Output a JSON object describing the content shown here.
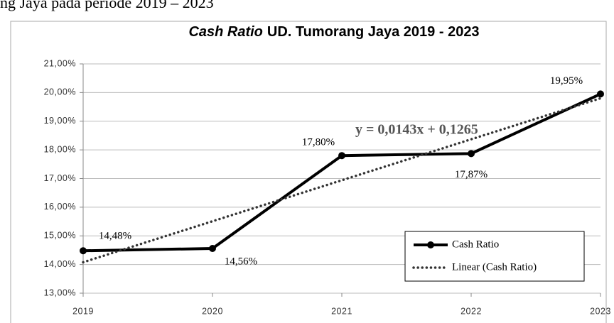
{
  "caption": "ng Jaya pada periode 2019 – 2023",
  "chart_data": {
    "type": "line",
    "title_emphasis": "Cash Ratio",
    "title": "UD. Tumorang Jaya 2019 - 2023",
    "categories": [
      "2019",
      "2020",
      "2021",
      "2022",
      "2023"
    ],
    "series": [
      {
        "name": "Cash Ratio",
        "color": "#000000",
        "values": [
          14.48,
          14.56,
          17.8,
          17.87,
          19.95
        ],
        "value_labels": [
          "14,48%",
          "14,56%",
          "17,80%",
          "17,87%",
          "19,95%"
        ]
      },
      {
        "name": "Linear (Cash Ratio)",
        "color": "#333333",
        "values": [
          14.08,
          15.51,
          16.94,
          18.37,
          19.8
        ],
        "dotted": true
      }
    ],
    "annotations": [
      "y = 0,0143x + 0,1265"
    ],
    "ylim": [
      13,
      21
    ],
    "yticks": [
      {
        "value": 13,
        "label": "13,00%"
      },
      {
        "value": 14,
        "label": "14,00%"
      },
      {
        "value": 15,
        "label": "15,00%"
      },
      {
        "value": 16,
        "label": "16,00%"
      },
      {
        "value": 17,
        "label": "17,00%"
      },
      {
        "value": 18,
        "label": "18,00%"
      },
      {
        "value": 19,
        "label": "19,00%"
      },
      {
        "value": 20,
        "label": "20,00%"
      },
      {
        "value": 21,
        "label": "21,00%"
      }
    ],
    "grid": true,
    "legend": "lower-right"
  }
}
